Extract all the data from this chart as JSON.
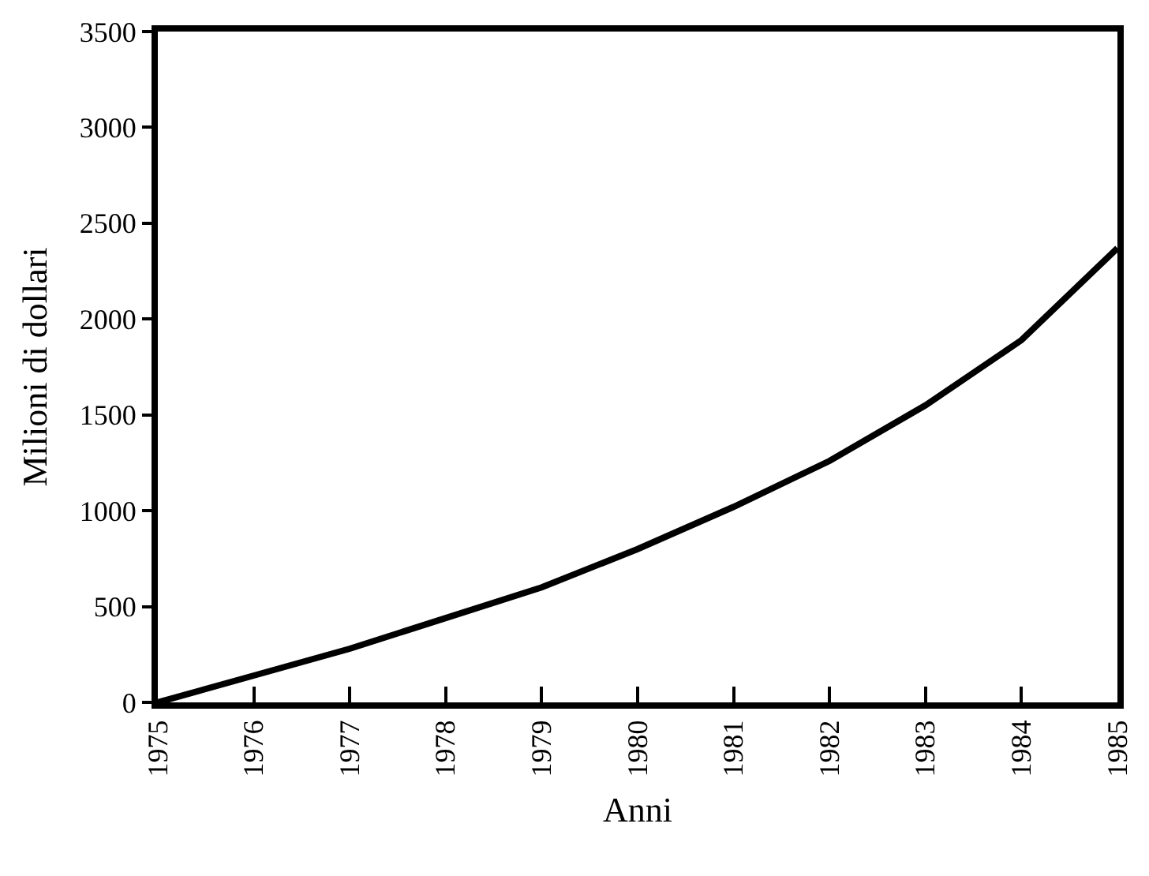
{
  "chart_data": {
    "type": "line",
    "xlabel": "Anni",
    "ylabel": "Milioni di dollari",
    "x": [
      1975,
      1976,
      1977,
      1978,
      1979,
      1980,
      1981,
      1982,
      1983,
      1984,
      1985
    ],
    "series": [
      {
        "color": "#000000",
        "values": [
          0,
          140,
          280,
          440,
          600,
          800,
          1020,
          1260,
          1550,
          1890,
          2370
        ]
      }
    ],
    "xlim": [
      1975,
      1985
    ],
    "xticks": [
      1975,
      1976,
      1977,
      1978,
      1979,
      1980,
      1981,
      1982,
      1983,
      1984,
      1985
    ],
    "ylim": [
      0,
      3500
    ],
    "yticks": [
      0,
      500,
      1000,
      1500,
      2000,
      2500,
      3000,
      3500
    ],
    "marker": "none",
    "line_style": "solid"
  }
}
